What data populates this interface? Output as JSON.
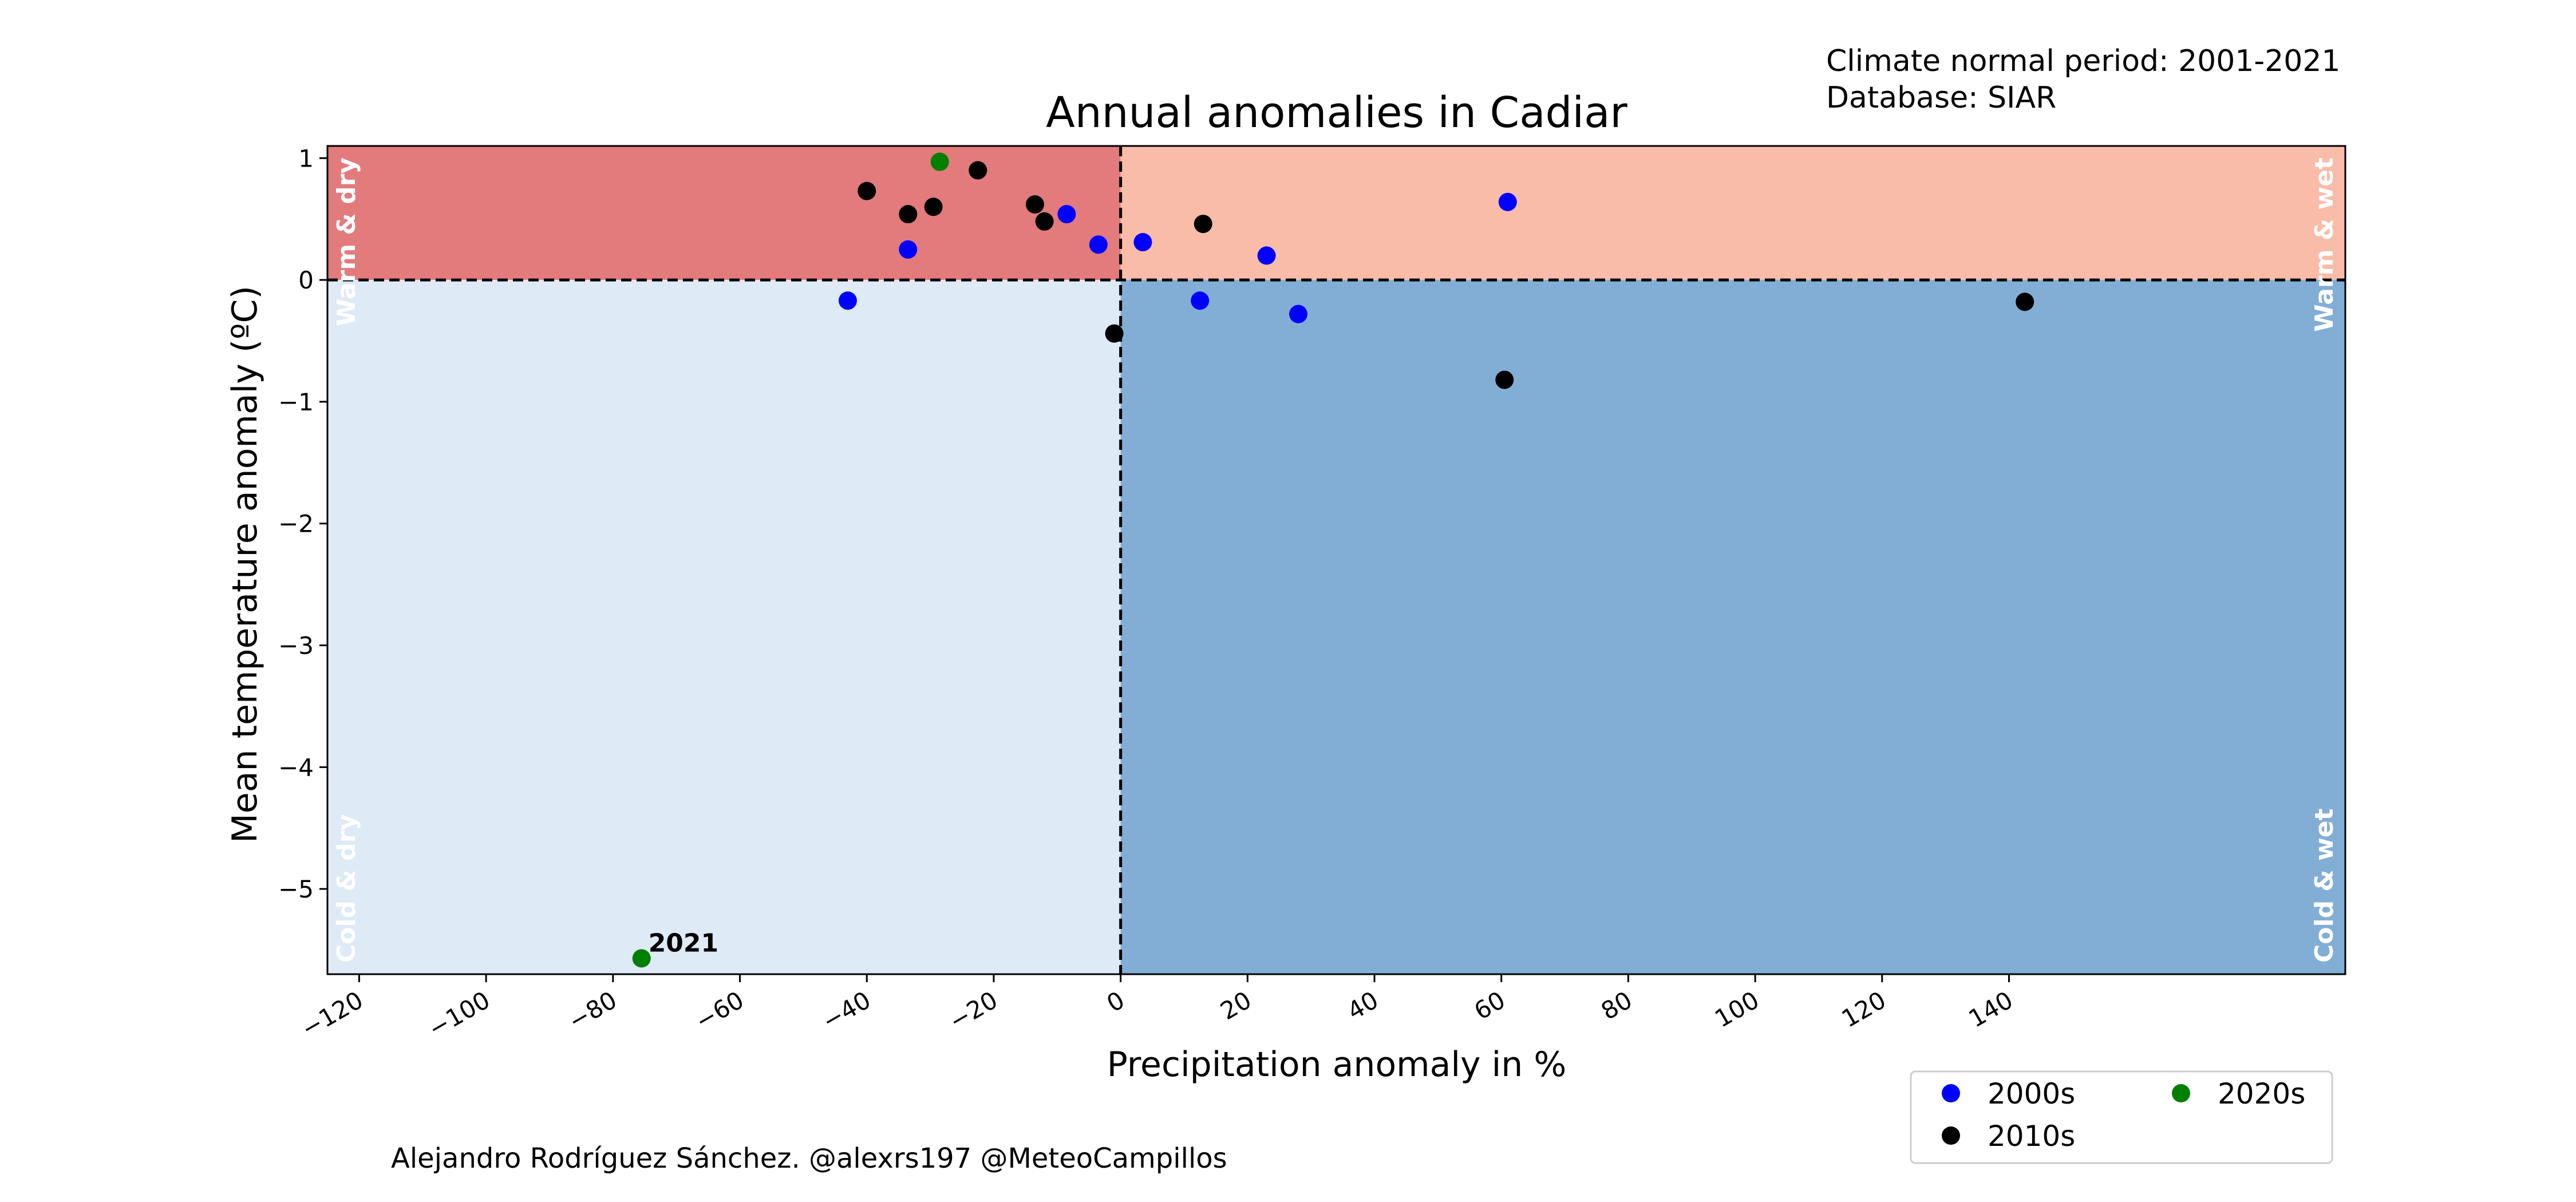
{
  "chart_data": {
    "type": "scatter",
    "title": "Annual anomalies in Cadiar",
    "info_lines": [
      "Climate normal period: 2001-2021",
      "Database: SIAR"
    ],
    "xlabel": "Precipitation anomaly in %",
    "ylabel": "Mean temperature anomaly (ºC)",
    "credit": "Alejandro Rodríguez Sánchez. @alexrs197 @MeteoCampillos",
    "xlim": [
      -125,
      193
    ],
    "ylim": [
      -5.7,
      1.1
    ],
    "xticks": [
      -120,
      -100,
      -80,
      -60,
      -40,
      -20,
      0,
      20,
      40,
      60,
      80,
      100,
      120,
      140
    ],
    "xtick_labels": [
      "−120",
      "−100",
      "−80",
      "−60",
      "−40",
      "−20",
      "0",
      "20",
      "40",
      "60",
      "80",
      "100",
      "120",
      "140"
    ],
    "yticks": [
      1,
      0,
      -1,
      -2,
      -3,
      -4,
      -5
    ],
    "ytick_labels": [
      "1",
      "0",
      "−1",
      "−2",
      "−3",
      "−4",
      "−5"
    ],
    "grid": false,
    "legend_position": "bottom-right, below the plot",
    "quadrants": [
      {
        "label": "Warm & dry",
        "color": "#e37a7c"
      },
      {
        "label": "Warm & wet",
        "color": "#f8bca8"
      },
      {
        "label": "Cold & dry",
        "color": "#deeaf5"
      },
      {
        "label": "Cold & wet",
        "color": "#82aed6"
      }
    ],
    "series": [
      {
        "name": "2000s",
        "color": "#0000ff",
        "points": [
          {
            "x": -43,
            "y": -0.17
          },
          {
            "x": -33.5,
            "y": 0.25
          },
          {
            "x": -8.5,
            "y": 0.54
          },
          {
            "x": -3.5,
            "y": 0.29
          },
          {
            "x": 3.5,
            "y": 0.31
          },
          {
            "x": 12.5,
            "y": -0.17
          },
          {
            "x": 23,
            "y": 0.2
          },
          {
            "x": 28,
            "y": -0.28
          },
          {
            "x": 61,
            "y": 0.64
          }
        ]
      },
      {
        "name": "2010s",
        "color": "#000000",
        "points": [
          {
            "x": -40,
            "y": 0.73
          },
          {
            "x": -33.5,
            "y": 0.54
          },
          {
            "x": -29.5,
            "y": 0.6
          },
          {
            "x": -22.5,
            "y": 0.9
          },
          {
            "x": -13.5,
            "y": 0.62
          },
          {
            "x": -12,
            "y": 0.48
          },
          {
            "x": -1,
            "y": -0.44
          },
          {
            "x": 13,
            "y": 0.46
          },
          {
            "x": 60.5,
            "y": -0.82
          },
          {
            "x": 142.5,
            "y": -0.18
          }
        ]
      },
      {
        "name": "2020s",
        "color": "#008000",
        "points": [
          {
            "x": -28.5,
            "y": 0.97
          },
          {
            "x": -75.5,
            "y": -5.57,
            "label": "2021"
          }
        ]
      }
    ]
  }
}
